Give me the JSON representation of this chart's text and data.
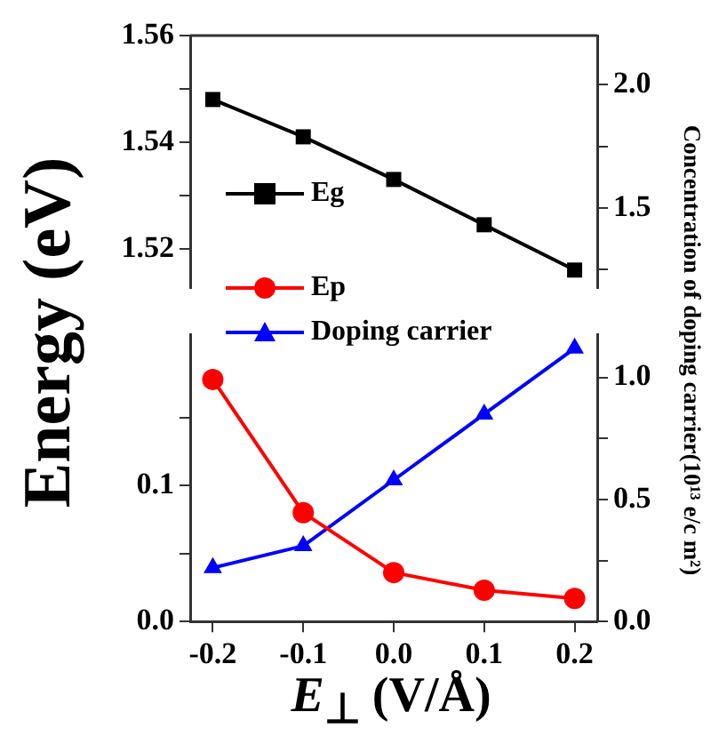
{
  "chart_data": [
    {
      "type": "line",
      "x": [
        -0.2,
        -0.1,
        0.0,
        0.1,
        0.2
      ],
      "xlim": [
        -0.225,
        0.225
      ],
      "tick_labels": "y",
      "ylim": [
        1.5127,
        1.56
      ],
      "yticks": [
        1.52,
        {
          "value": 1.53,
          "label": null
        },
        1.54,
        {
          "value": 1.55,
          "label": null
        },
        1.56
      ],
      "y2lim": [
        1.176,
        2.2
      ],
      "y2ticks": [
        {
          "value": 1.25,
          "label": null
        },
        1.5,
        {
          "value": 1.75,
          "label": null
        },
        {
          "value": 2,
          "label": "2.0"
        }
      ],
      "legend": "left",
      "line_style": "solid",
      "series": [
        {
          "name": "Eg",
          "color": "#000000",
          "marker": "square",
          "values": [
            1.548,
            1.541,
            1.533,
            1.5245,
            1.516
          ]
        }
      ]
    },
    {
      "type": "line",
      "ylabel": "Energy (eV)",
      "xlabel": "E$_{⊥}$ (V/Å)",
      "y2label": "Concentration of doping carrier(10¹³ e/c m²)",
      "x": [
        -0.2,
        -0.1,
        0.0,
        0.1,
        0.2
      ],
      "xlim": [
        -0.225,
        0.225
      ],
      "xticks": [
        {
          "value": -0.2,
          "label": "-0.2"
        },
        {
          "value": -0.1,
          "label": "-0.1"
        },
        {
          "value": 0,
          "label": "0.0"
        },
        {
          "value": 0.1,
          "label": "0.1"
        },
        {
          "value": 0.2,
          "label": "0.2"
        }
      ],
      "ylim": [
        0,
        0.211
      ],
      "yticks": [
        {
          "value": 0,
          "label": "0.0"
        },
        {
          "value": 0.05,
          "label": null
        },
        0.1,
        {
          "value": 0.15,
          "label": null
        }
      ],
      "y2lim": [
        0,
        1.176
      ],
      "y2ticks": [
        {
          "value": 0,
          "label": "0.0"
        },
        {
          "value": 0.25,
          "label": null
        },
        0.5,
        {
          "value": 0.75,
          "label": null
        },
        {
          "value": 1,
          "label": "1.0"
        }
      ],
      "legend": "top left",
      "line_style": "solid",
      "series": [
        {
          "name": "Ep",
          "color": "#ff0000",
          "marker": "circle",
          "values": [
            0.178,
            0.08,
            0.036,
            0.023,
            0.017
          ]
        },
        {
          "name": "Doping carrier",
          "color": "#0000ff",
          "marker": "triangle",
          "axis": "y2",
          "values": [
            0.22,
            0.31,
            0.58,
            0.85,
            1.12
          ]
        }
      ]
    }
  ]
}
